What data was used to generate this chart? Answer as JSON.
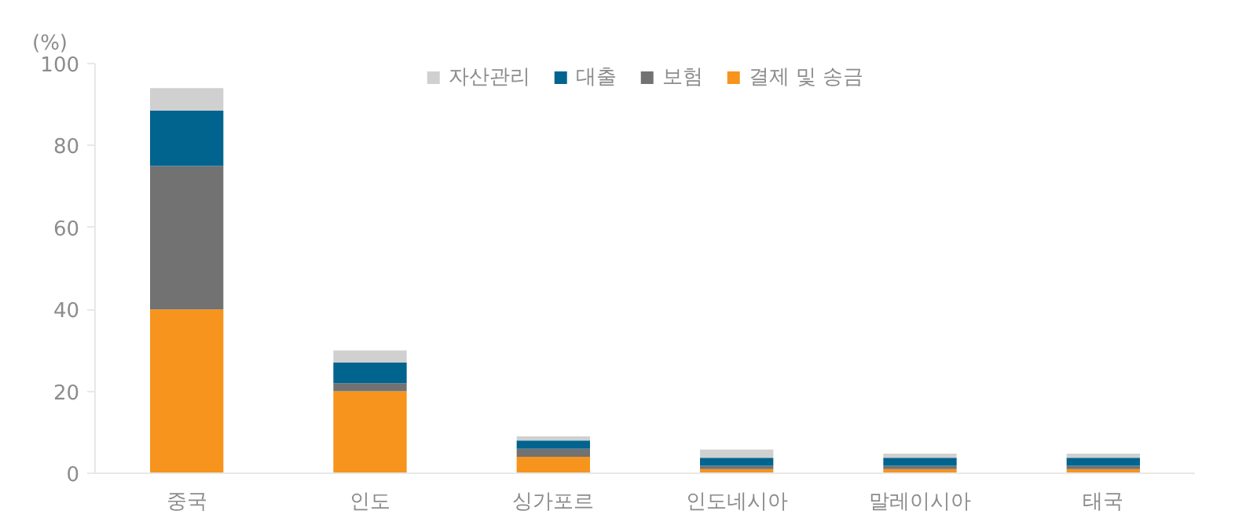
{
  "chart_data": {
    "type": "bar",
    "stacked": true,
    "ylabel": "(%)",
    "categories": [
      "중국",
      "인도",
      "싱가포르",
      "인도네시아",
      "말레이시아",
      "태국"
    ],
    "series": [
      {
        "name": "결제 및 송금",
        "color": "#f7941d",
        "values": [
          40,
          20,
          4,
          1,
          1,
          1
        ]
      },
      {
        "name": "보험",
        "color": "#727272",
        "values": [
          35,
          2,
          2,
          0.8,
          0.8,
          0.8
        ]
      },
      {
        "name": "대출",
        "color": "#00648f",
        "values": [
          13.5,
          5,
          2,
          2,
          2,
          2
        ]
      },
      {
        "name": "자산관리",
        "color": "#d0d0d0",
        "values": [
          5.5,
          3,
          1,
          2,
          1,
          1
        ]
      }
    ],
    "ylim": [
      0,
      100
    ],
    "yticks": [
      0,
      20,
      40,
      60,
      80,
      100
    ],
    "grid": false,
    "legend": "top"
  }
}
